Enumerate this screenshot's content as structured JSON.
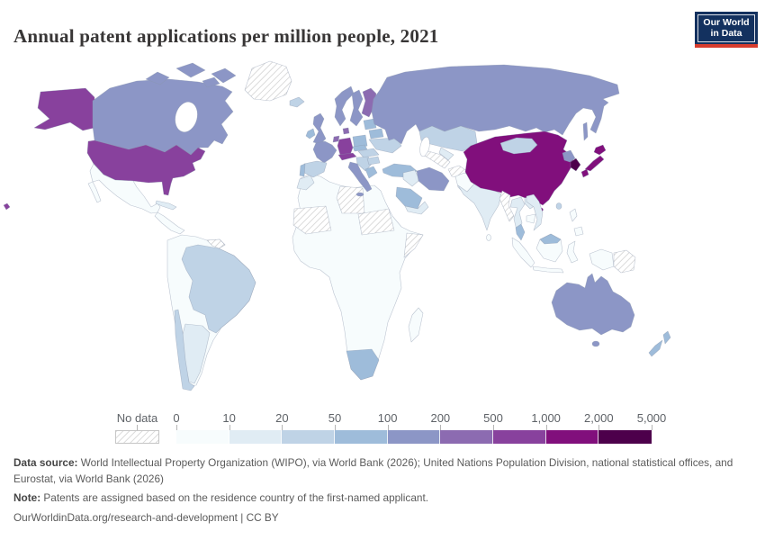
{
  "header": {
    "title": "Annual patent applications per million people, 2021",
    "logo": {
      "line1": "Our World",
      "line2": "in Data"
    }
  },
  "chart_data": {
    "type": "choropleth_map",
    "title": "Annual patent applications per million people, 2021",
    "year": "2021",
    "unit": "patent applications per million people",
    "legend": {
      "no_data_label": "No data",
      "tick_labels": [
        "0",
        "10",
        "20",
        "50",
        "100",
        "200",
        "500",
        "1,000",
        "2,000",
        "5,000"
      ],
      "bin_ranges": [
        "0–10",
        "10–20",
        "20–50",
        "50–100",
        "100–200",
        "200–500",
        "500–1,000",
        "1,000–2,000",
        "2,000–5,000"
      ],
      "bin_colors": [
        "#f7fcfd",
        "#e0ecf4",
        "#bfd3e6",
        "#9ebcda",
        "#8c96c6",
        "#8c6bb1",
        "#88419d",
        "#810f7c",
        "#4d004b"
      ],
      "no_data_color": "hatched"
    },
    "countries": [
      {
        "name": "United States",
        "range": "500–1,000",
        "bin": 6
      },
      {
        "name": "Canada",
        "range": "100–200",
        "bin": 4
      },
      {
        "name": "Greenland",
        "range": "No data",
        "bin": -1
      },
      {
        "name": "Iceland",
        "range": "20–50",
        "bin": 2
      },
      {
        "name": "Mexico",
        "range": "0–10",
        "bin": 0
      },
      {
        "name": "Central America",
        "range": "0–10",
        "bin": 0
      },
      {
        "name": "Cuba",
        "range": "10–20",
        "bin": 1
      },
      {
        "name": "South America (other)",
        "range": "0–10",
        "bin": 0
      },
      {
        "name": "Brazil",
        "range": "20–50",
        "bin": 2
      },
      {
        "name": "Chile",
        "range": "20–50",
        "bin": 2
      },
      {
        "name": "Argentina",
        "range": "10–20",
        "bin": 1
      },
      {
        "name": "Guyana and Suriname",
        "range": "No data",
        "bin": -1
      },
      {
        "name": "United Kingdom",
        "range": "100–200",
        "bin": 4
      },
      {
        "name": "Ireland",
        "range": "50–100",
        "bin": 3
      },
      {
        "name": "France",
        "range": "100–200",
        "bin": 4
      },
      {
        "name": "Germany",
        "range": "500–1,000",
        "bin": 6
      },
      {
        "name": "Benelux",
        "range": "200–500",
        "bin": 5
      },
      {
        "name": "Denmark",
        "range": "200–500",
        "bin": 5
      },
      {
        "name": "Norway",
        "range": "100–200",
        "bin": 4
      },
      {
        "name": "Sweden",
        "range": "100–200",
        "bin": 4
      },
      {
        "name": "Finland",
        "range": "200–500",
        "bin": 5
      },
      {
        "name": "Spain",
        "range": "20–50",
        "bin": 2
      },
      {
        "name": "Portugal",
        "range": "50–100",
        "bin": 3
      },
      {
        "name": "Italy",
        "range": "100–200",
        "bin": 4
      },
      {
        "name": "Switzerland and Austria",
        "range": "500–1,000",
        "bin": 6
      },
      {
        "name": "Poland",
        "range": "50–100",
        "bin": 3
      },
      {
        "name": "Czechia and Slovakia",
        "range": "50–100",
        "bin": 3
      },
      {
        "name": "Hungary and Romania",
        "range": "20–50",
        "bin": 2
      },
      {
        "name": "Balkans",
        "range": "20–50",
        "bin": 2
      },
      {
        "name": "Greece",
        "range": "50–100",
        "bin": 3
      },
      {
        "name": "Bulgaria",
        "range": "20–50",
        "bin": 2
      },
      {
        "name": "Ukraine",
        "range": "20–50",
        "bin": 2
      },
      {
        "name": "Belarus",
        "range": "50–100",
        "bin": 3
      },
      {
        "name": "Baltics",
        "range": "50–100",
        "bin": 3
      },
      {
        "name": "Russia",
        "range": "100–200",
        "bin": 4
      },
      {
        "name": "Turkey",
        "range": "50–100",
        "bin": 3
      },
      {
        "name": "Kazakhstan",
        "range": "20–50",
        "bin": 2
      },
      {
        "name": "Uzbekistan",
        "range": "10–20",
        "bin": 1
      },
      {
        "name": "Turkmenistan",
        "range": "No data",
        "bin": -1
      },
      {
        "name": "Afghanistan",
        "range": "No data",
        "bin": -1
      },
      {
        "name": "Iran",
        "range": "100–200",
        "bin": 4
      },
      {
        "name": "Iraq and Syria",
        "range": "10–20",
        "bin": 1
      },
      {
        "name": "Saudi Arabia",
        "range": "50–100",
        "bin": 3
      },
      {
        "name": "Yemen and Oman",
        "range": "10–20",
        "bin": 1
      },
      {
        "name": "India",
        "range": "10–20",
        "bin": 1
      },
      {
        "name": "Pakistan",
        "range": "0–10",
        "bin": 0
      },
      {
        "name": "Sri Lanka",
        "range": "0–10",
        "bin": 0
      },
      {
        "name": "China",
        "range": "1,000–2,000",
        "bin": 7
      },
      {
        "name": "Mongolia",
        "range": "20–50",
        "bin": 2
      },
      {
        "name": "North Korea",
        "range": "100–200",
        "bin": 4
      },
      {
        "name": "South Korea",
        "range": "2,000–5,000",
        "bin": 8
      },
      {
        "name": "Japan",
        "range": "1,000–2,000",
        "bin": 7
      },
      {
        "name": "Taiwan",
        "range": "20–50",
        "bin": 2
      },
      {
        "name": "Myanmar",
        "range": "No data",
        "bin": -1
      },
      {
        "name": "Thailand",
        "range": "10–20",
        "bin": 1
      },
      {
        "name": "Vietnam",
        "range": "10–20",
        "bin": 1
      },
      {
        "name": "Laos",
        "range": "10–20",
        "bin": 1
      },
      {
        "name": "Cambodia",
        "range": "0–10",
        "bin": 0
      },
      {
        "name": "Malaysia",
        "range": "50–100",
        "bin": 3
      },
      {
        "name": "Indonesia",
        "range": "0–10",
        "bin": 0
      },
      {
        "name": "Philippines",
        "range": "0–10",
        "bin": 0
      },
      {
        "name": "Papua New Guinea",
        "range": "No data",
        "bin": -1
      },
      {
        "name": "Australia",
        "range": "100–200",
        "bin": 4
      },
      {
        "name": "New Zealand",
        "range": "50–100",
        "bin": 3
      },
      {
        "name": "Africa (other)",
        "range": "0–10",
        "bin": 0
      },
      {
        "name": "Morocco",
        "range": "10–20",
        "bin": 1
      },
      {
        "name": "Libya",
        "range": "No data",
        "bin": -1
      },
      {
        "name": "Mauritania and Mali",
        "range": "No data",
        "bin": -1
      },
      {
        "name": "Chad and Sudan",
        "range": "No data",
        "bin": -1
      },
      {
        "name": "Somalia",
        "range": "No data",
        "bin": -1
      },
      {
        "name": "South Africa",
        "range": "50–100",
        "bin": 3
      },
      {
        "name": "Madagascar",
        "range": "0–10",
        "bin": 0
      }
    ]
  },
  "footer": {
    "data_source_label": "Data source:",
    "data_source_text": " World Intellectual Property Organization (WIPO), via World Bank (2026); United Nations Population Division, national statistical offices, and Eurostat, via World Bank (2026)",
    "note_label": "Note:",
    "note_text": " Patents are assigned based on the residence country of the first-named applicant.",
    "citation": "OurWorldinData.org/research-and-development | CC BY"
  }
}
